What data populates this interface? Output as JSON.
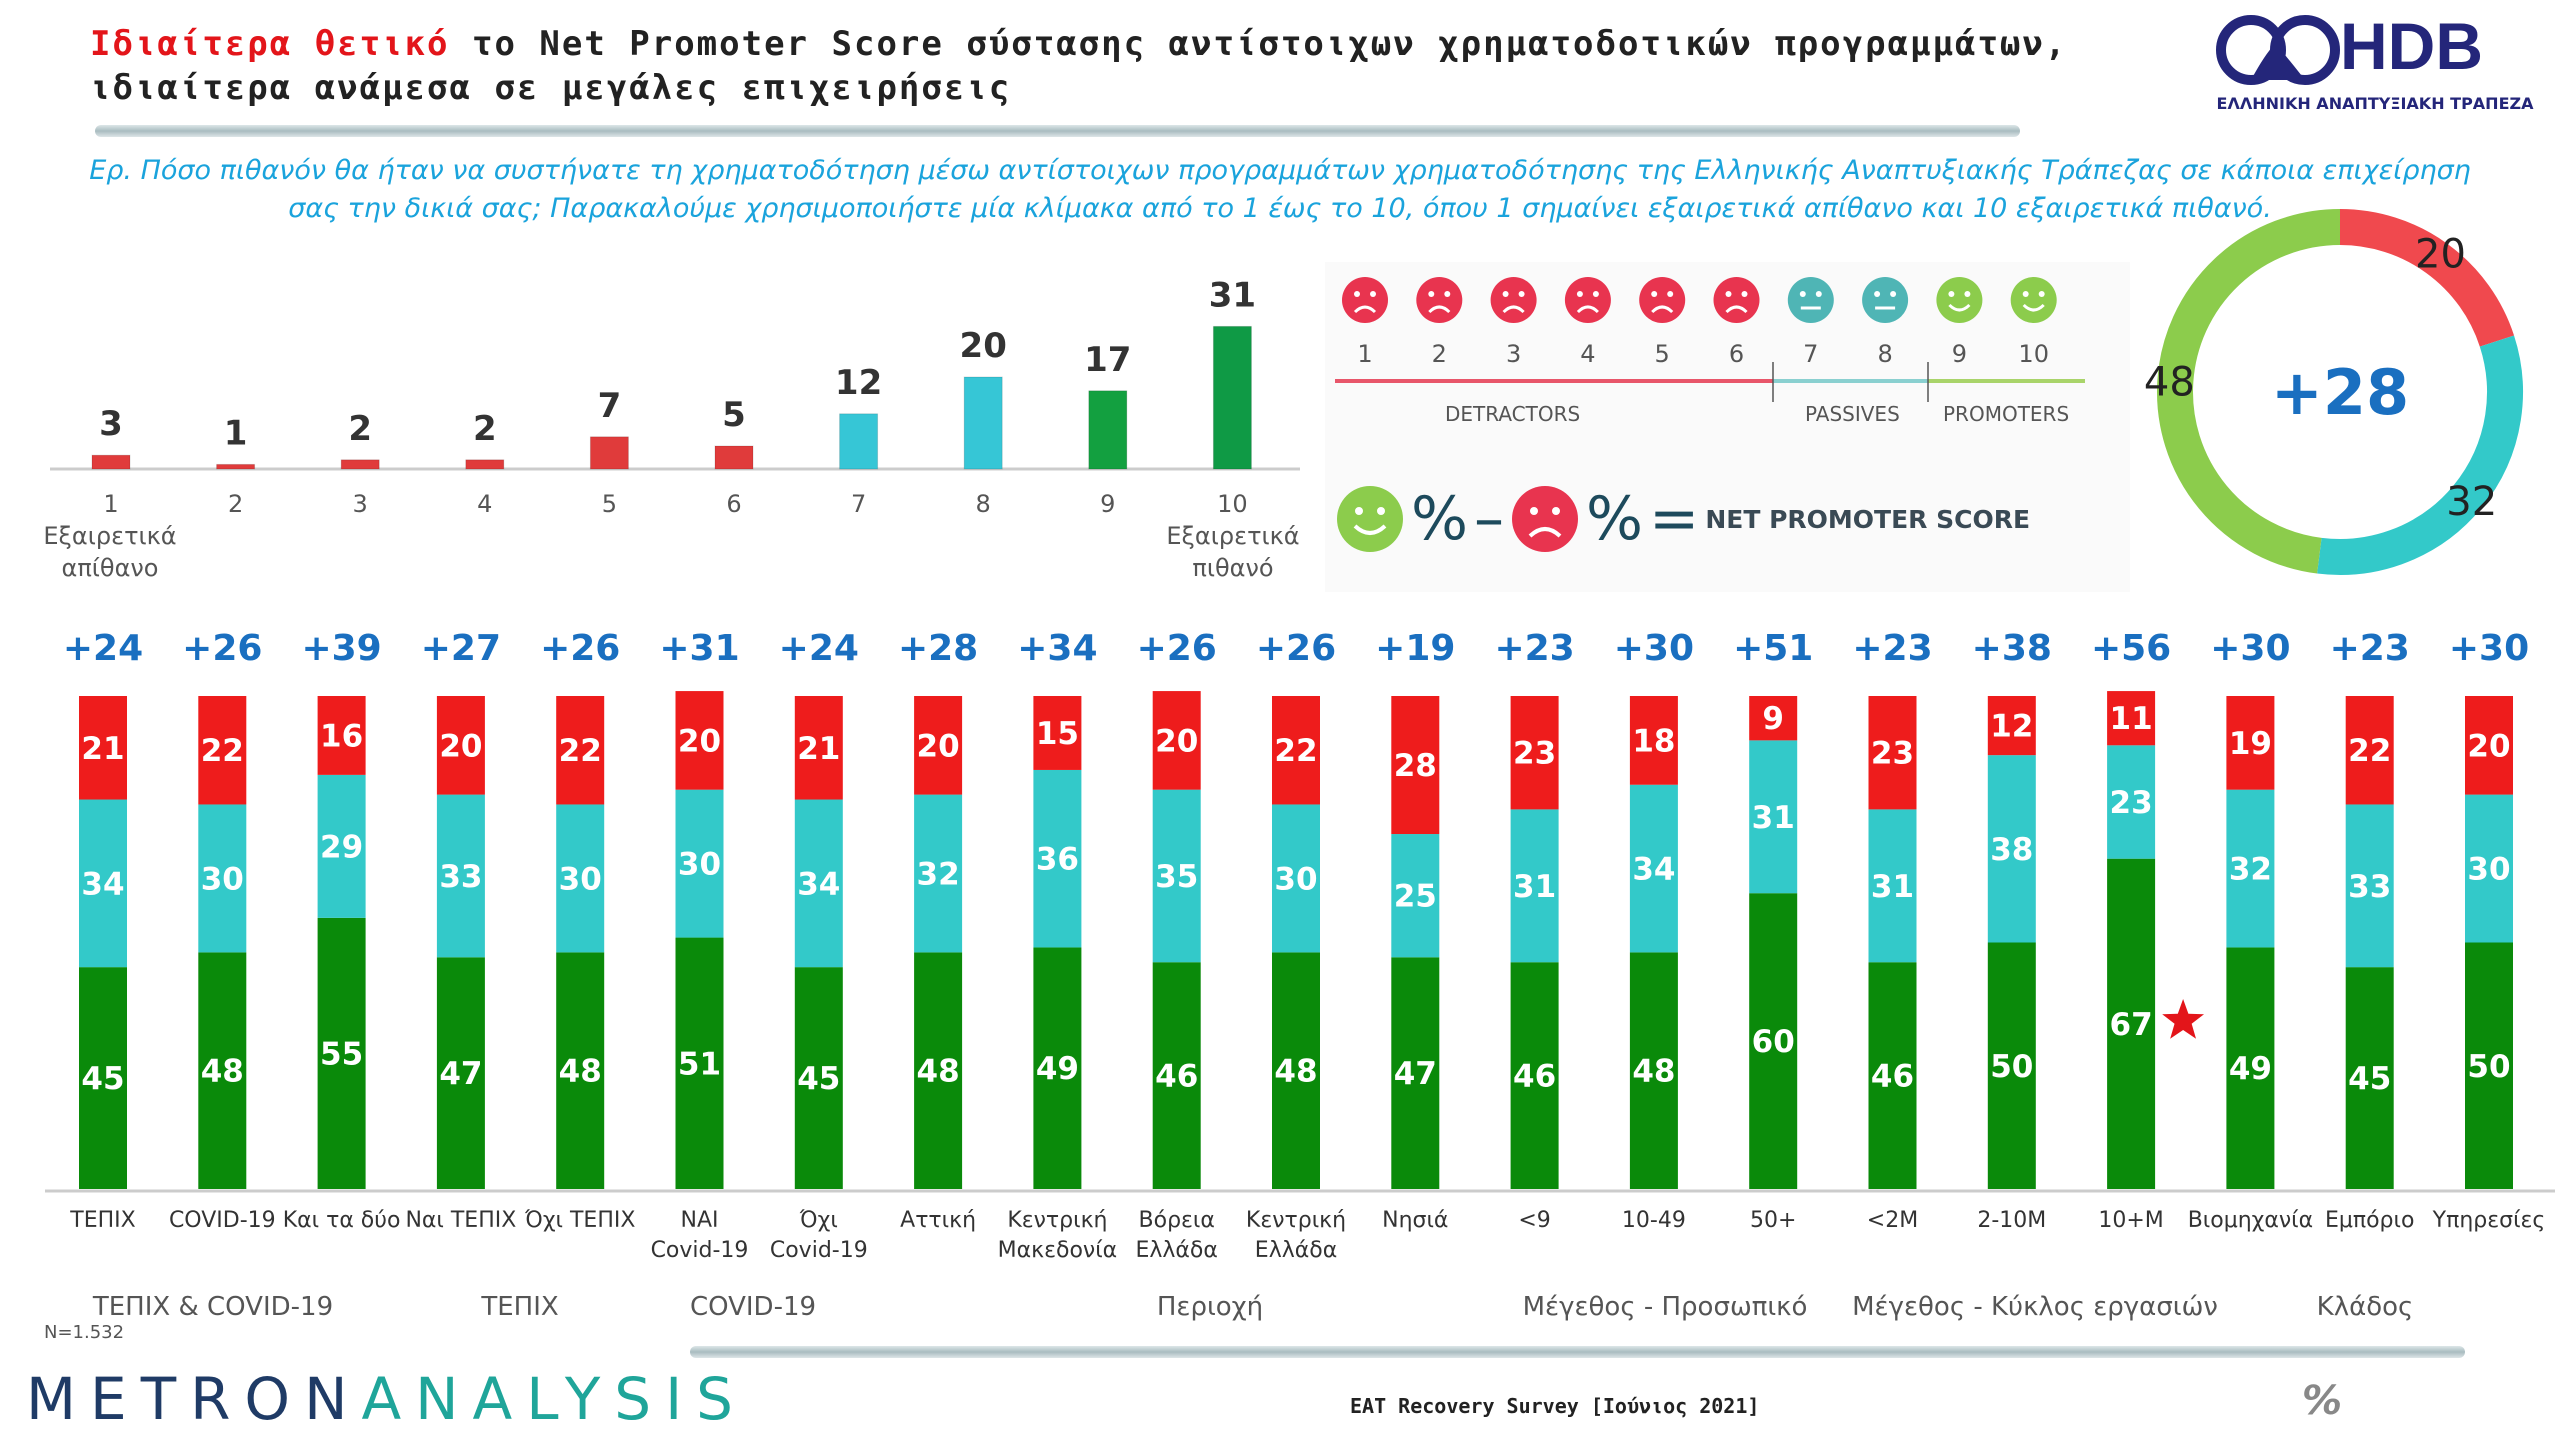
{
  "header": {
    "title_highlight": "Ιδιαίτερα θετικό",
    "title_rest": " το Net Promoter Score σύστασης αντίστοιχων χρηματοδοτικών προγραμμάτων, ιδιαίτερα ανάμεσα σε μεγάλες επιχειρήσεις",
    "question": "Ερ. Πόσο πιθανόν θα ήταν να συστήνατε τη χρηματοδότηση μέσω αντίστοιχων προγραμμάτων χρηματοδότησης της Ελληνικής Αναπτυξιακής Τράπεζας σε κάποια επιχείρηση σας την δικιά σας; Παρακαλούμε χρησιμοποιήστε μία κλίμακα από το 1 έως το 10, όπου 1 σημαίνει εξαιρετικά απίθανο και 10 εξαιρετικά πιθανό.",
    "logo_text": "HDB",
    "logo_sub": "ΕΛΛΗΝΙΚΗ ΑΝΑΠΤΥΞΙΑΚΗ ΤΡΑΠΕΖΑ"
  },
  "legend": {
    "scores": [
      "1",
      "2",
      "3",
      "4",
      "5",
      "6",
      "7",
      "8",
      "9",
      "10"
    ],
    "detractors": "DETRACTORS",
    "passives": "PASSIVES",
    "promoters": "PROMOTERS",
    "formula_pct": "%",
    "formula_minus": "–",
    "formula_eq": "=",
    "formula_label": "NET PROMOTER SCORE"
  },
  "colors": {
    "detractor": "#ee1c1c",
    "passive": "#33c9c9",
    "promoter": "#0a8a0a",
    "nps_text": "#1a6fc0",
    "donut_promoter": "#8ccc4c",
    "donut_passive": "#33c9c9",
    "donut_detractor": "#f0494e"
  },
  "chart_data": [
    {
      "type": "bar",
      "categories": [
        "1",
        "2",
        "3",
        "4",
        "5",
        "6",
        "7",
        "8",
        "9",
        "10"
      ],
      "values": [
        3,
        1,
        2,
        2,
        7,
        5,
        12,
        20,
        17,
        31
      ],
      "low_label": "Εξαιρετικά απίθανο",
      "high_label": "Εξαιρετικά πιθανό"
    },
    {
      "type": "pie",
      "donut": true,
      "center_label": "+28",
      "slices": [
        {
          "name": "detractors",
          "value": 20
        },
        {
          "name": "passives",
          "value": 32
        },
        {
          "name": "promoters",
          "value": 48
        }
      ]
    },
    {
      "type": "bar",
      "stacked": true,
      "categories": [
        "ΤΕΠΙΧ",
        "COVID-19",
        "Και τα δύο",
        "Ναι ΤΕΠΙΧ",
        "Όχι ΤΕΠΙΧ",
        "ΝΑΙ Covid-19",
        "Όχι Covid-19",
        "Αττική",
        "Κεντρική Μακεδονία",
        "Βόρεια Ελλάδα",
        "Κεντρική Ελλάδα",
        "Νησιά",
        "<9",
        "10-49",
        "50+",
        "<2M",
        "2-10M",
        "10+M",
        "Βιομηχανία",
        "Εμπόριο",
        "Υπηρεσίες"
      ],
      "series": [
        {
          "name": "promoters",
          "values": [
            45,
            48,
            55,
            47,
            48,
            51,
            45,
            48,
            49,
            46,
            48,
            47,
            46,
            48,
            60,
            46,
            50,
            67,
            49,
            45,
            50
          ]
        },
        {
          "name": "passives",
          "values": [
            34,
            30,
            29,
            33,
            30,
            30,
            34,
            32,
            36,
            35,
            30,
            25,
            31,
            34,
            31,
            31,
            38,
            23,
            32,
            33,
            30
          ]
        },
        {
          "name": "detractors",
          "values": [
            21,
            22,
            16,
            20,
            22,
            20,
            21,
            20,
            15,
            20,
            22,
            28,
            23,
            18,
            9,
            23,
            12,
            11,
            19,
            22,
            20
          ]
        }
      ],
      "nps": [
        "+24",
        "+26",
        "+39",
        "+27",
        "+26",
        "+31",
        "+24",
        "+28",
        "+34",
        "+26",
        "+26",
        "+19",
        "+23",
        "+30",
        "+51",
        "+23",
        "+38",
        "+56",
        "+30",
        "+23",
        "+30"
      ],
      "highlight_index": 17,
      "groups": [
        {
          "label": "ΤΕΠΙΧ & COVID-19"
        },
        {
          "label": "ΤΕΠΙΧ"
        },
        {
          "label": "COVID-19"
        },
        {
          "label": "Περιοχή"
        },
        {
          "label": "Μέγεθος - Προσωπικό"
        },
        {
          "label": "Μέγεθος - Κύκλος εργασιών"
        },
        {
          "label": "Κλάδος"
        }
      ]
    }
  ],
  "footer": {
    "sample": "N=1.532",
    "brand_a": "METRON",
    "brand_b": "ANALYSIS",
    "survey": "EAT Recovery Survey [Ιούνιος 2021]",
    "unit": "%"
  }
}
